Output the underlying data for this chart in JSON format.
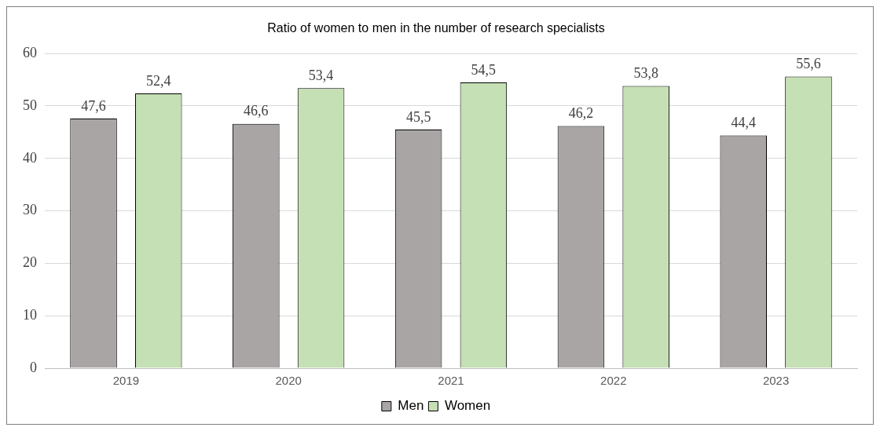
{
  "chart_data": {
    "type": "bar",
    "title": "Ratio of women to men in the number of research specialists",
    "categories": [
      "2019",
      "2020",
      "2021",
      "2022",
      "2023"
    ],
    "series": [
      {
        "name": "Men",
        "color": "#a9a5a5",
        "values": [
          47.6,
          46.6,
          45.5,
          46.2,
          44.4
        ],
        "value_labels": [
          "47,6",
          "46,6",
          "45,5",
          "46,2",
          "44,4"
        ]
      },
      {
        "name": "Women",
        "color": "#c5e0b4",
        "values": [
          52.4,
          53.4,
          54.5,
          53.8,
          55.6
        ],
        "value_labels": [
          "52,4",
          "53,4",
          "54,5",
          "53,8",
          "55,6"
        ]
      }
    ],
    "ylim": [
      0,
      60
    ],
    "yticks": [
      0,
      10,
      20,
      30,
      40,
      50,
      60
    ],
    "grid": "y",
    "legend": "bottom"
  }
}
